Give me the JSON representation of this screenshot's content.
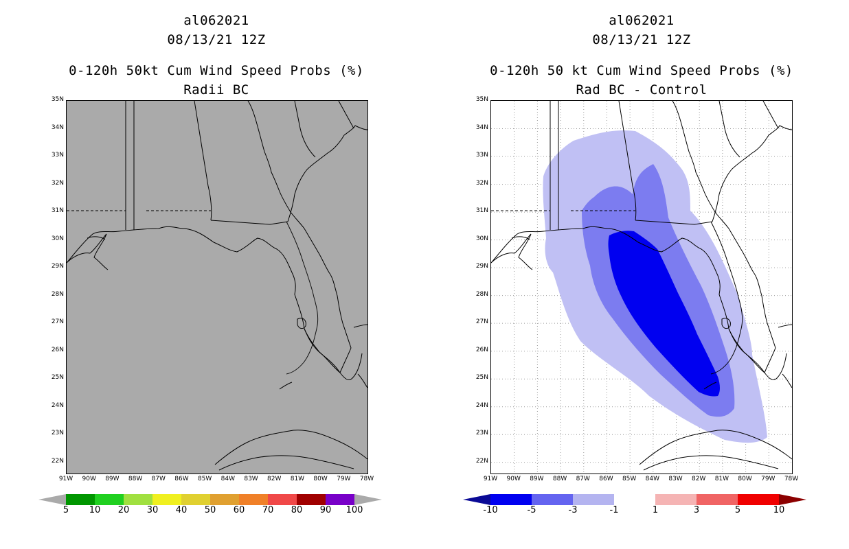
{
  "colors": {
    "map_fill": "#aaaaaa",
    "coast": "#000000",
    "grid": "#9a9a9a",
    "left_colorbar": [
      "#009600",
      "#20d020",
      "#a0e040",
      "#f0f020",
      "#e0d030",
      "#e0a030",
      "#f08028",
      "#f04848",
      "#a00000",
      "#7800c8"
    ],
    "right_colorbar": [
      "#0a0a96",
      "#0000f0",
      "#6464f0",
      "#b4b4f0",
      "#ffffff",
      "#f5b4b4",
      "#f06464",
      "#f00000",
      "#8c0000"
    ],
    "contour_levels": [
      "#c0c0f4",
      "#7c7cf0",
      "#0000f0"
    ]
  },
  "left_panel": {
    "title_line1": "al062021",
    "title_line2": "08/13/21 12Z",
    "title_line3": "0-120h 50kt Cum Wind Speed Probs (%)",
    "title_line4": "Radii BC",
    "colorbar": {
      "labels": [
        "5",
        "10",
        "20",
        "30",
        "40",
        "50",
        "60",
        "70",
        "80",
        "90",
        "100"
      ]
    }
  },
  "right_panel": {
    "title_line1": "al062021",
    "title_line2": "08/13/21 12Z",
    "title_line3": "0-120h 50 kt Cum Wind Speed Probs (%)",
    "title_line4": "Rad BC - Control",
    "colorbar": {
      "labels": [
        "-10",
        "-5",
        "-3",
        "-1",
        "1",
        "3",
        "5",
        "10"
      ]
    }
  },
  "map": {
    "lat_labels": [
      "35N",
      "34N",
      "33N",
      "32N",
      "31N",
      "30N",
      "29N",
      "28N",
      "27N",
      "26N",
      "25N",
      "24N",
      "23N",
      "22N"
    ],
    "lon_labels": [
      "91W",
      "90W",
      "89W",
      "88W",
      "87W",
      "86W",
      "85W",
      "84W",
      "83W",
      "82W",
      "81W",
      "80W",
      "79W",
      "78W"
    ]
  }
}
